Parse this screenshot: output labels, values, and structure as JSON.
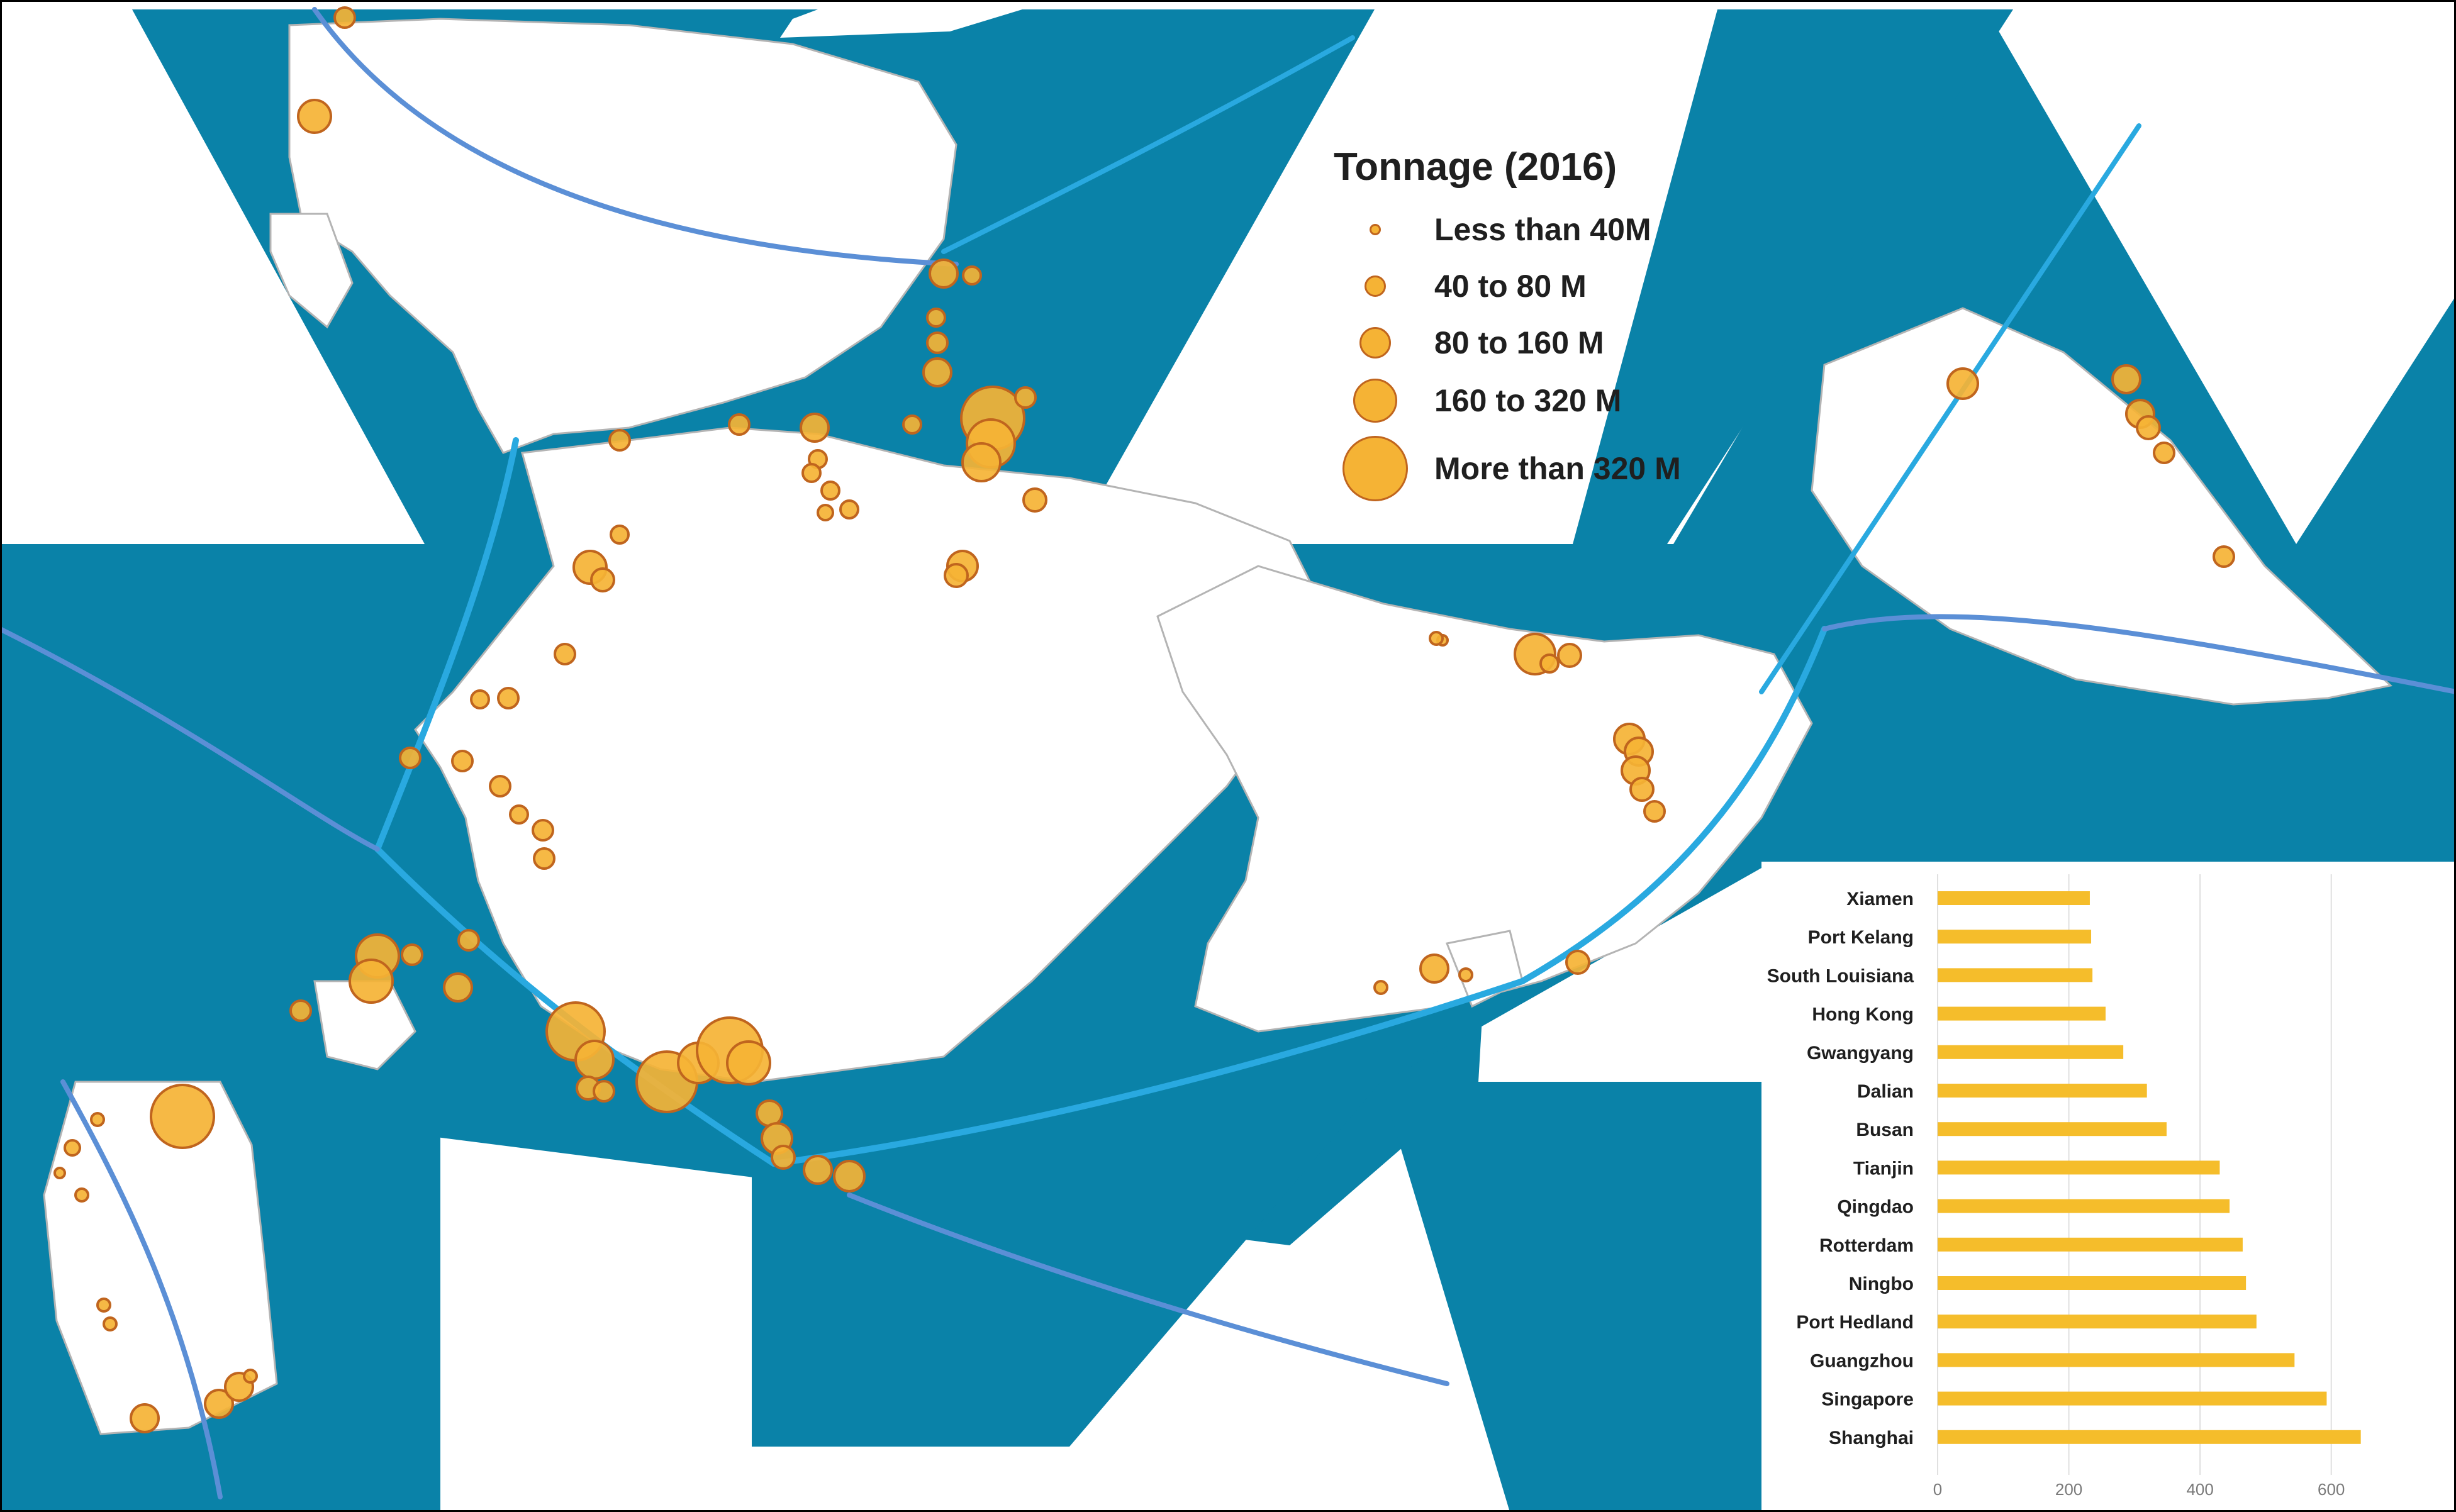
{
  "legend": {
    "title": "Tonnage (2016)",
    "items": [
      {
        "label": "Less than 40M",
        "size_class": 1
      },
      {
        "label": "40 to 80 M",
        "size_class": 2
      },
      {
        "label": "80 to 160 M",
        "size_class": 3
      },
      {
        "label": "160 to 320 M",
        "size_class": 4
      },
      {
        "label": "More than 320 M",
        "size_class": 5
      }
    ]
  },
  "colors": {
    "ocean": "#0a82a8",
    "land": "#ffffff",
    "borders": "#b4b4b4",
    "shipping_routes": "#29a9e0",
    "shipping_routes_secondary": "#5b8fd6",
    "port_fill": "#f5b335",
    "port_stroke": "#c0651e",
    "bar": "#f5bd2b",
    "grid": "#e0e0e0"
  },
  "chart_data": {
    "type": "bar",
    "orientation": "horizontal",
    "categories": [
      "Xiamen",
      "Port Kelang",
      "South Louisiana",
      "Hong Kong",
      "Gwangyang",
      "Dalian",
      "Busan",
      "Tianjin",
      "Qingdao",
      "Rotterdam",
      "Ningbo",
      "Port Hedland",
      "Guangzhou",
      "Singapore",
      "Shanghai"
    ],
    "values": [
      232,
      234,
      236,
      256,
      283,
      319,
      349,
      430,
      445,
      465,
      470,
      486,
      544,
      593,
      645
    ],
    "ticks": [
      0,
      200,
      400,
      600
    ],
    "xlim": [
      0,
      700
    ],
    "grid": true,
    "title": "",
    "xlabel": "",
    "ylabel": ""
  }
}
